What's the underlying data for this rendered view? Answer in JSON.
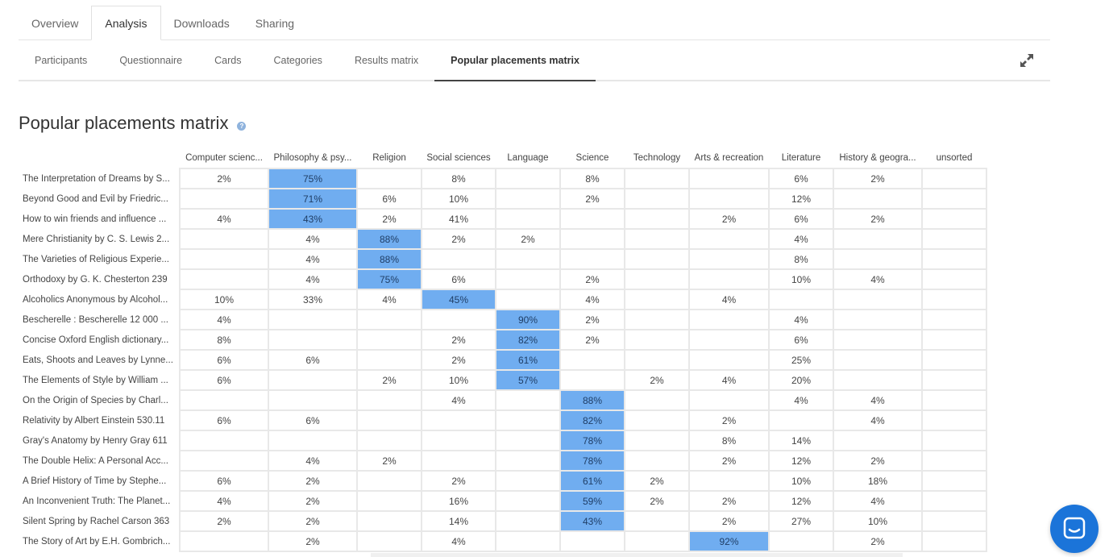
{
  "top_tabs": [
    {
      "label": "Overview",
      "active": false
    },
    {
      "label": "Analysis",
      "active": true
    },
    {
      "label": "Downloads",
      "active": false
    },
    {
      "label": "Sharing",
      "active": false
    }
  ],
  "sub_tabs": [
    {
      "label": "Participants",
      "active": false
    },
    {
      "label": "Questionnaire",
      "active": false
    },
    {
      "label": "Cards",
      "active": false
    },
    {
      "label": "Categories",
      "active": false
    },
    {
      "label": "Results matrix",
      "active": false
    },
    {
      "label": "Popular placements matrix",
      "active": true
    }
  ],
  "page": {
    "title": "Popular placements matrix",
    "help_glyph": "?"
  },
  "colors": {
    "highlight": "#70adf0",
    "accent": "#1b74d9"
  },
  "columns": [
    "Computer scienc...",
    "Philosophy & psy...",
    "Religion",
    "Social sciences",
    "Language",
    "Science",
    "Technology",
    "Arts & recreation",
    "Literature",
    "History & geogra...",
    "unsorted"
  ],
  "rows": [
    {
      "label": "The Interpretation of Dreams by S...",
      "cells": [
        "2%",
        "75%",
        "",
        "8%",
        "",
        "8%",
        "",
        "",
        "6%",
        "2%",
        ""
      ],
      "hl": 1
    },
    {
      "label": "Beyond Good and Evil by Friedric...",
      "cells": [
        "",
        "71%",
        "6%",
        "10%",
        "",
        "2%",
        "",
        "",
        "12%",
        "",
        ""
      ],
      "hl": 1
    },
    {
      "label": "How to win friends and influence ...",
      "cells": [
        "4%",
        "43%",
        "2%",
        "41%",
        "",
        "",
        "",
        "2%",
        "6%",
        "2%",
        ""
      ],
      "hl": 1
    },
    {
      "label": "Mere Christianity by C. S. Lewis 2...",
      "cells": [
        "",
        "4%",
        "88%",
        "2%",
        "2%",
        "",
        "",
        "",
        "4%",
        "",
        ""
      ],
      "hl": 2
    },
    {
      "label": "The Varieties of Religious Experie...",
      "cells": [
        "",
        "4%",
        "88%",
        "",
        "",
        "",
        "",
        "",
        "8%",
        "",
        ""
      ],
      "hl": 2
    },
    {
      "label": "Orthodoxy by G. K. Chesterton 239",
      "cells": [
        "",
        "4%",
        "75%",
        "6%",
        "",
        "2%",
        "",
        "",
        "10%",
        "4%",
        ""
      ],
      "hl": 2
    },
    {
      "label": "Alcoholics Anonymous by Alcohol...",
      "cells": [
        "10%",
        "33%",
        "4%",
        "45%",
        "",
        "4%",
        "",
        "4%",
        "",
        "",
        ""
      ],
      "hl": 3
    },
    {
      "label": "Bescherelle : Bescherelle 12 000 ...",
      "cells": [
        "4%",
        "",
        "",
        "",
        "90%",
        "2%",
        "",
        "",
        "4%",
        "",
        ""
      ],
      "hl": 4
    },
    {
      "label": "Concise Oxford English dictionary...",
      "cells": [
        "8%",
        "",
        "",
        "2%",
        "82%",
        "2%",
        "",
        "",
        "6%",
        "",
        ""
      ],
      "hl": 4
    },
    {
      "label": "Eats, Shoots and Leaves by Lynne...",
      "cells": [
        "6%",
        "6%",
        "",
        "2%",
        "61%",
        "",
        "",
        "",
        "25%",
        "",
        ""
      ],
      "hl": 4
    },
    {
      "label": "The Elements of Style by William ...",
      "cells": [
        "6%",
        "",
        "2%",
        "10%",
        "57%",
        "",
        "2%",
        "4%",
        "20%",
        "",
        ""
      ],
      "hl": 4
    },
    {
      "label": "On the Origin of Species by Charl...",
      "cells": [
        "",
        "",
        "",
        "4%",
        "",
        "88%",
        "",
        "",
        "4%",
        "4%",
        ""
      ],
      "hl": 5
    },
    {
      "label": "Relativity by Albert Einstein 530.11",
      "cells": [
        "6%",
        "6%",
        "",
        "",
        "",
        "82%",
        "",
        "2%",
        "",
        "4%",
        ""
      ],
      "hl": 5
    },
    {
      "label": "Gray's Anatomy by Henry Gray 611",
      "cells": [
        "",
        "",
        "",
        "",
        "",
        "78%",
        "",
        "8%",
        "14%",
        "",
        ""
      ],
      "hl": 5
    },
    {
      "label": "The Double Helix: A Personal Acc...",
      "cells": [
        "",
        "4%",
        "2%",
        "",
        "",
        "78%",
        "",
        "2%",
        "12%",
        "2%",
        ""
      ],
      "hl": 5
    },
    {
      "label": "A Brief History of Time by Stephe...",
      "cells": [
        "6%",
        "2%",
        "",
        "2%",
        "",
        "61%",
        "2%",
        "",
        "10%",
        "18%",
        ""
      ],
      "hl": 5
    },
    {
      "label": "An Inconvenient Truth: The Planet...",
      "cells": [
        "4%",
        "2%",
        "",
        "16%",
        "",
        "59%",
        "2%",
        "2%",
        "12%",
        "4%",
        ""
      ],
      "hl": 5
    },
    {
      "label": "Silent Spring by Rachel Carson 363",
      "cells": [
        "2%",
        "2%",
        "",
        "14%",
        "",
        "43%",
        "",
        "2%",
        "27%",
        "10%",
        ""
      ],
      "hl": 5
    },
    {
      "label": "The Story of Art by E.H. Gombrich...",
      "cells": [
        "",
        "2%",
        "",
        "4%",
        "",
        "",
        "",
        "92%",
        "",
        "2%",
        ""
      ],
      "hl": 7
    }
  ]
}
